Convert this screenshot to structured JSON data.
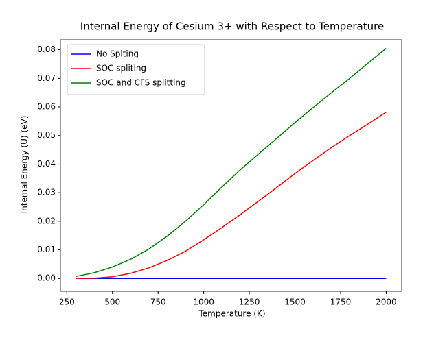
{
  "chart_data": {
    "type": "line",
    "title": "Internal Energy of Cesium 3+ with Respect to Temperature",
    "xlabel": "Temperature (K)",
    "ylabel": "Internal Energy (U) (eV)",
    "x": [
      300,
      400,
      500,
      600,
      700,
      800,
      900,
      1000,
      1100,
      1200,
      1300,
      1400,
      1500,
      1600,
      1700,
      1800,
      1900,
      2000
    ],
    "series": [
      {
        "name": "No Splting",
        "color": "#0000ff",
        "values": [
          0,
          0,
          0,
          0,
          0,
          0,
          0,
          0,
          0,
          0,
          0,
          0,
          0,
          0,
          0,
          0,
          0,
          0
        ]
      },
      {
        "name": "SOC spliting",
        "color": "#ff0000",
        "values": [
          0,
          0.0001,
          0.0006,
          0.0018,
          0.0037,
          0.0063,
          0.0095,
          0.0135,
          0.0178,
          0.0223,
          0.027,
          0.0318,
          0.0367,
          0.0413,
          0.0458,
          0.05,
          0.054,
          0.0582
        ]
      },
      {
        "name": "SOC and CFS splitting",
        "color": "#008000",
        "values": [
          0.0007,
          0.002,
          0.004,
          0.0067,
          0.0103,
          0.0148,
          0.02,
          0.0258,
          0.032,
          0.038,
          0.0435,
          0.049,
          0.0545,
          0.0598,
          0.065,
          0.07,
          0.0753,
          0.0805
        ]
      }
    ],
    "xlim": [
      215,
      2085
    ],
    "xticks": [
      250,
      500,
      750,
      1000,
      1250,
      1500,
      1750,
      2000
    ],
    "ylim": [
      -0.0045,
      0.0835
    ],
    "yticks": [
      {
        "value": 0,
        "label": "0.00"
      },
      {
        "value": 0.01,
        "label": "0.01"
      },
      {
        "value": 0.02,
        "label": "0.02"
      },
      {
        "value": 0.03,
        "label": "0.03"
      },
      {
        "value": 0.04,
        "label": "0.04"
      },
      {
        "value": 0.05,
        "label": "0.05"
      },
      {
        "value": 0.06,
        "label": "0.06"
      },
      {
        "value": 0.07,
        "label": "0.07"
      },
      {
        "value": 0.08,
        "label": "0.08"
      }
    ],
    "legend": "upper left",
    "grid": false
  }
}
